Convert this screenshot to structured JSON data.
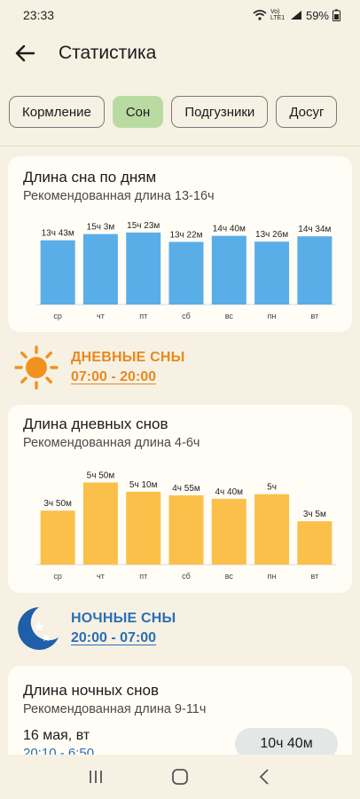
{
  "status": {
    "time": "23:33",
    "battery": "59%",
    "network": "Vo) LTE1"
  },
  "header": {
    "title": "Статистика"
  },
  "tabs": [
    {
      "label": "Кормление",
      "active": false
    },
    {
      "label": "Сон",
      "active": true
    },
    {
      "label": "Подгузники",
      "active": false
    },
    {
      "label": "Досуг",
      "active": false
    }
  ],
  "sleep_by_day": {
    "title": "Длина сна по дням",
    "subtitle": "Рекомендованная длина 13-16ч"
  },
  "day_sleep": {
    "title": "ДНЕВНЫЕ СНЫ",
    "time": "07:00 - 20:00",
    "color": "#e8891e"
  },
  "day_card": {
    "title": "Длина дневных снов",
    "subtitle": "Рекомендованная длина 4-6ч"
  },
  "night_sleep": {
    "title": "НОЧНЫЕ СНЫ",
    "time": "20:00 - 07:00",
    "color": "#2a6fb5"
  },
  "night_card": {
    "title": "Длина ночных снов",
    "subtitle": "Рекомендованная длина 9-11ч",
    "entry": {
      "date": "16 мая, вт",
      "range": "20:10 - 6:50",
      "duration": "10ч 40м"
    }
  },
  "chart_data": [
    {
      "type": "bar",
      "categories": [
        "ср",
        "чт",
        "пт",
        "сб",
        "вс",
        "пн",
        "вт"
      ],
      "values": [
        13.72,
        15.05,
        15.38,
        13.37,
        14.67,
        13.43,
        14.57
      ],
      "data_labels": [
        "13ч 43м",
        "15ч 3м",
        "15ч 23м",
        "13ч 22м",
        "14ч 40м",
        "13ч 26м",
        "14ч 34м"
      ],
      "ylim": [
        0,
        16.5
      ],
      "color": "#5aaee8"
    },
    {
      "type": "bar",
      "categories": [
        "ср",
        "чт",
        "пт",
        "сб",
        "вс",
        "пн",
        "вт"
      ],
      "values": [
        3.83,
        5.83,
        5.17,
        4.92,
        4.67,
        5.0,
        3.08
      ],
      "data_labels": [
        "3ч 50м",
        "5ч 50м",
        "5ч 10м",
        "4ч 55м",
        "4ч 40м",
        "5ч",
        "3ч 5м"
      ],
      "ylim": [
        0,
        6.3
      ],
      "color": "#fbc04a"
    }
  ]
}
